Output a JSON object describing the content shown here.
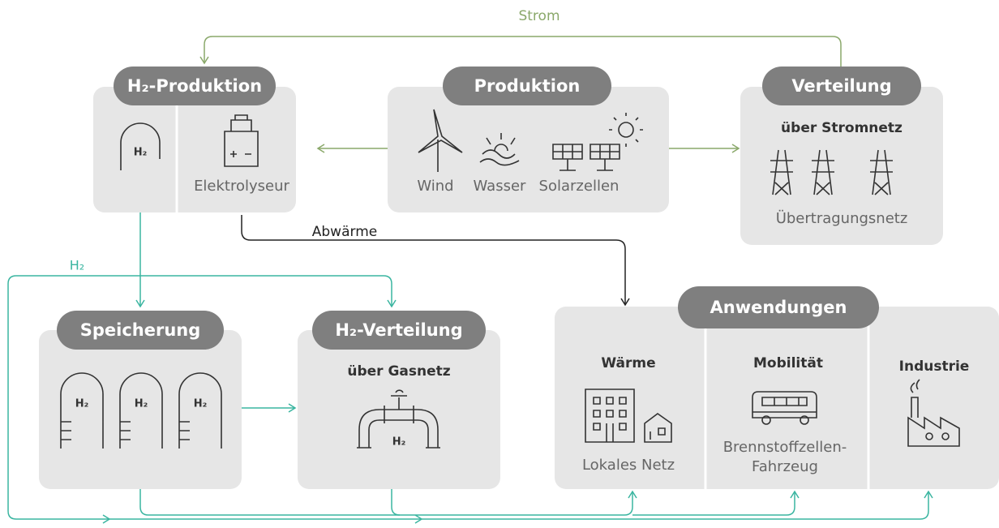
{
  "flows": {
    "strom": "Strom",
    "abwaerme": "Abwärme",
    "h2": "H₂"
  },
  "h2_produktion": {
    "title": "H₂-Produktion",
    "tank": "H₂",
    "device": "Elektrolyseur"
  },
  "produktion": {
    "title": "Produktion",
    "sources": [
      "Wind",
      "Wasser",
      "Solarzellen"
    ]
  },
  "verteilung": {
    "title": "Verteilung",
    "subtitle": "über Stromnetz",
    "label": "Übertragungsnetz"
  },
  "speicherung": {
    "title": "Speicherung",
    "tanks": [
      "H₂",
      "H₂",
      "H₂"
    ]
  },
  "h2_verteilung": {
    "title": "H₂-Verteilung",
    "subtitle": "über Gasnetz",
    "pipe": "H₂"
  },
  "anwendungen": {
    "title": "Anwendungen",
    "sections": [
      {
        "title": "Wärme",
        "label": "Lokales Netz"
      },
      {
        "title": "Mobilität",
        "label": [
          "Brennstoffzellen-",
          "Fahrzeug"
        ]
      },
      {
        "title": "Industrie"
      }
    ]
  }
}
